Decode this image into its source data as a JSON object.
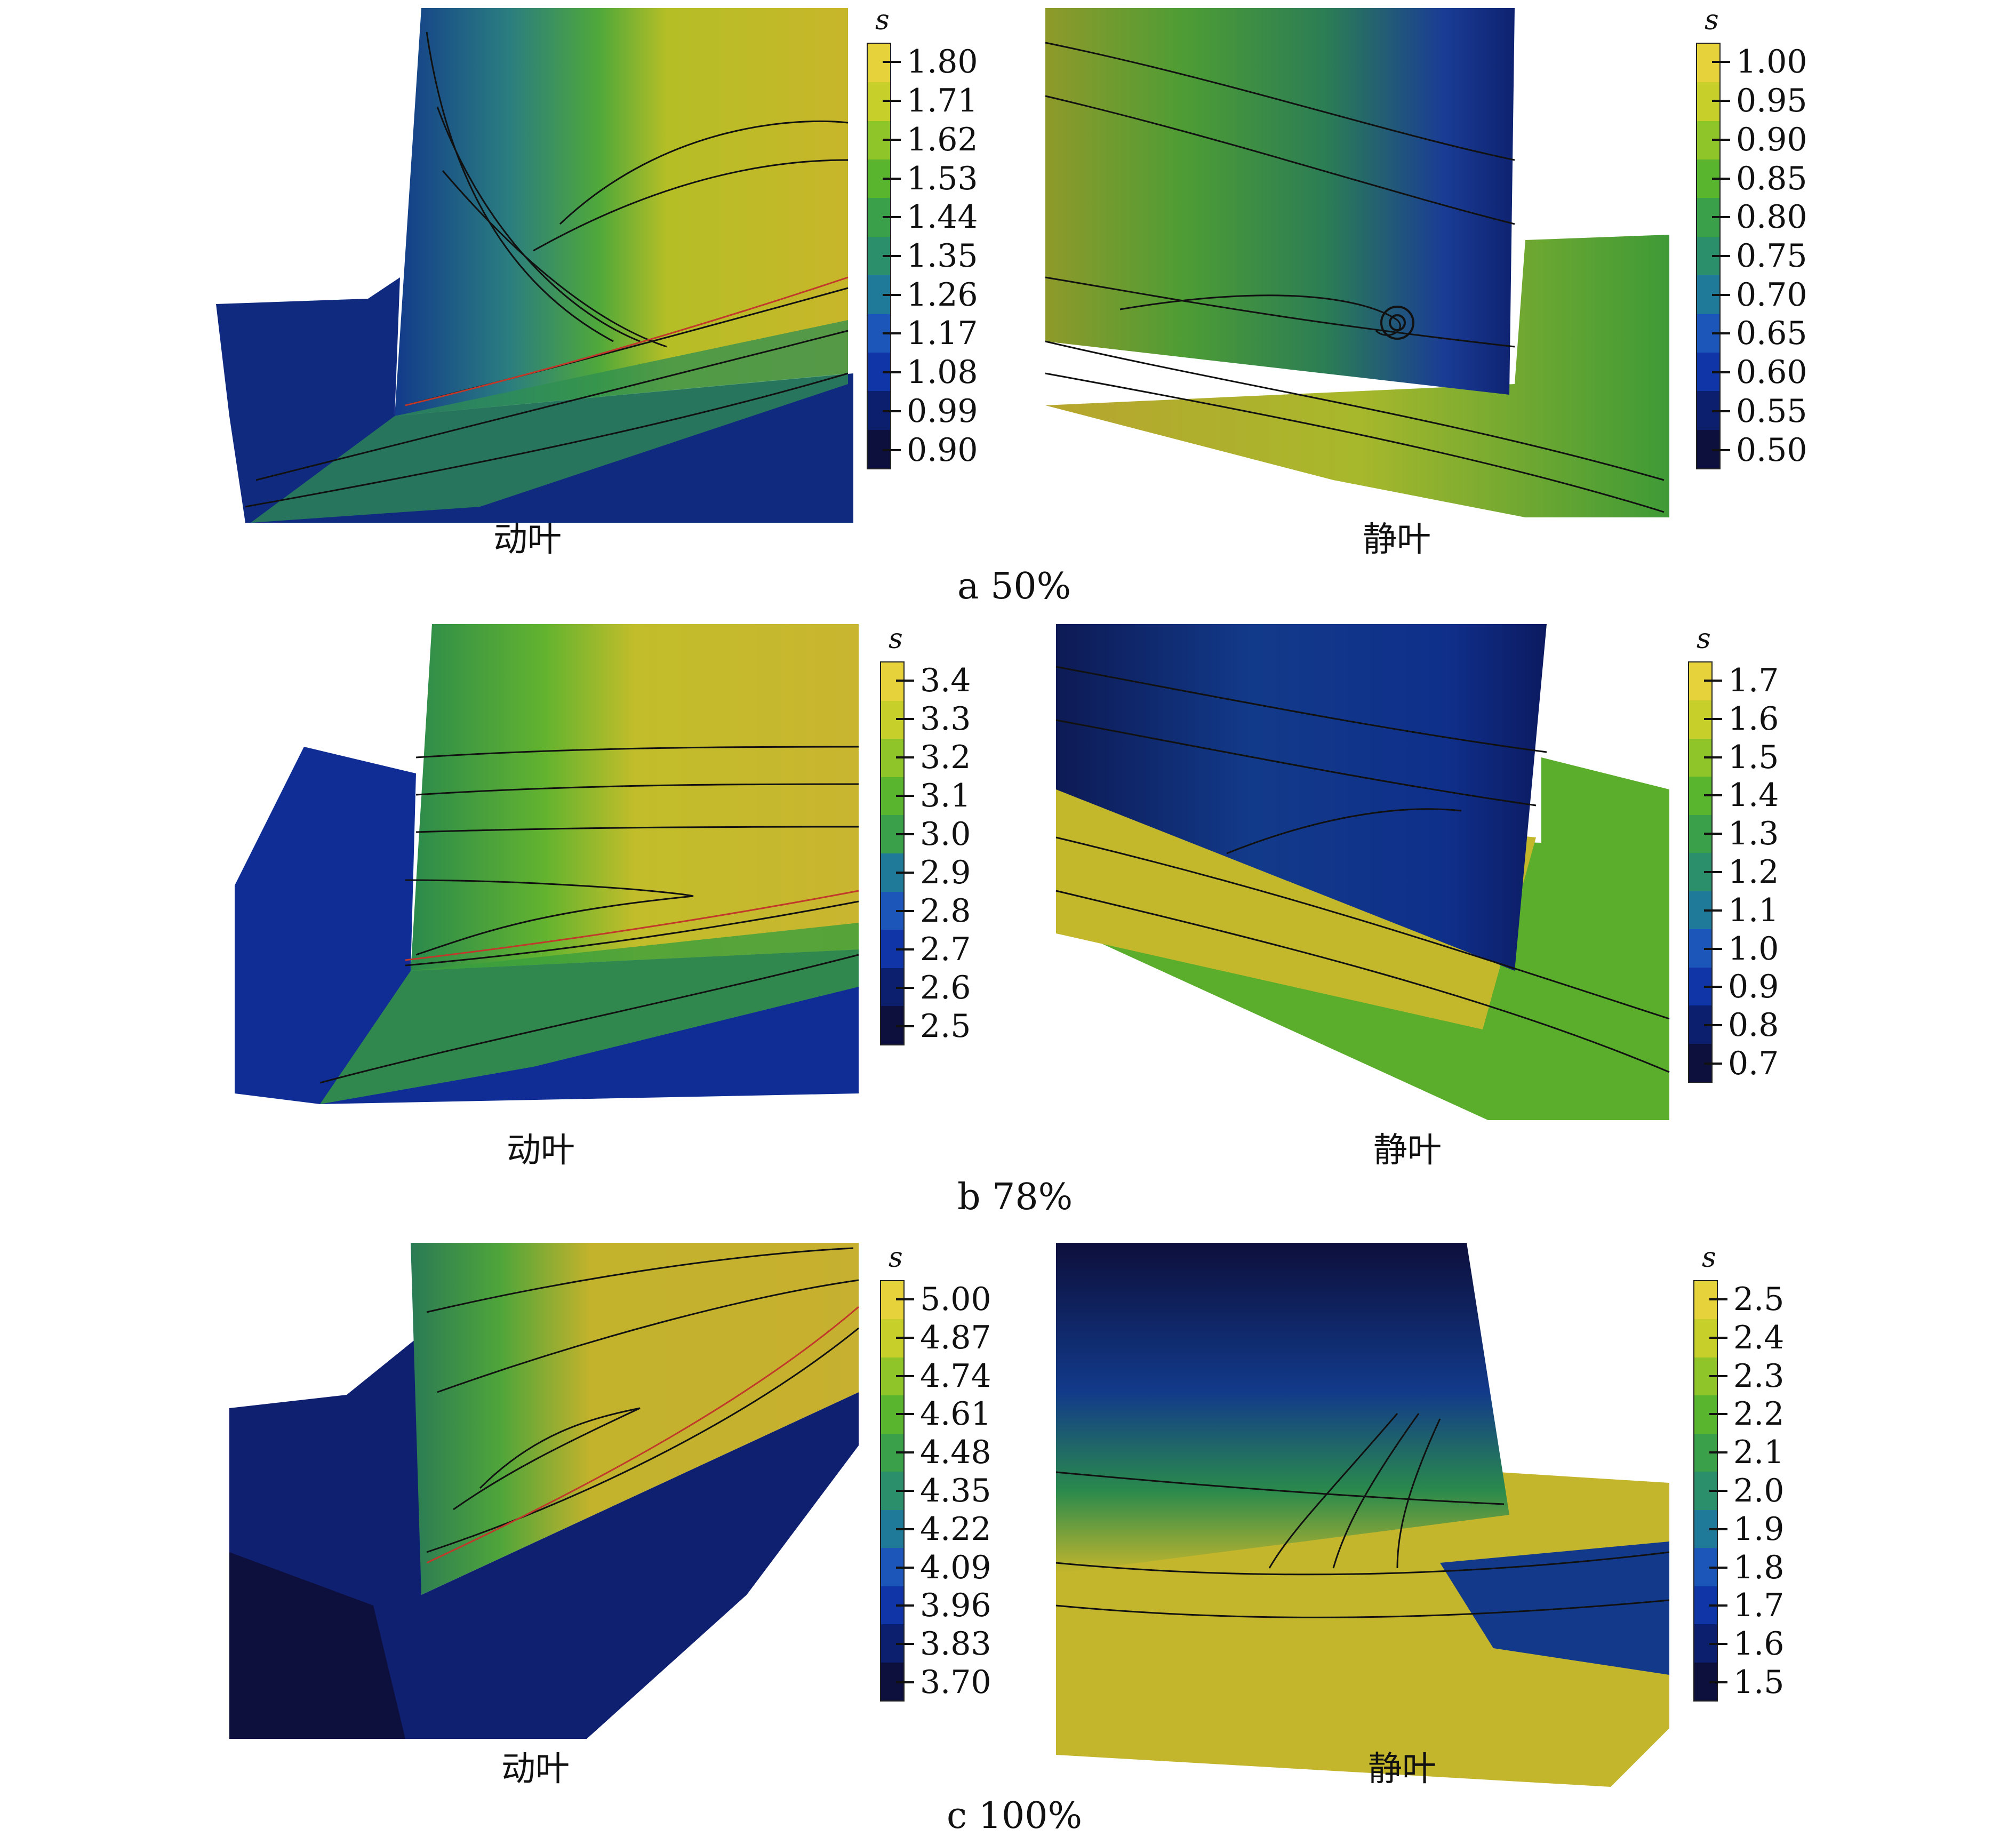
{
  "rows": [
    {
      "caption": "a  50%",
      "left": {
        "label": "动叶",
        "colorbar": {
          "title": "s",
          "ticks": [
            "1.80",
            "1.71",
            "1.62",
            "1.53",
            "1.44",
            "1.35",
            "1.26",
            "1.17",
            "1.08",
            "0.99",
            "0.90"
          ]
        }
      },
      "right": {
        "label": "静叶",
        "colorbar": {
          "title": "s",
          "ticks": [
            "1.00",
            "0.95",
            "0.90",
            "0.85",
            "0.80",
            "0.75",
            "0.70",
            "0.65",
            "0.60",
            "0.55",
            "0.50"
          ]
        }
      }
    },
    {
      "caption": "b  78%",
      "left": {
        "label": "动叶",
        "colorbar": {
          "title": "s",
          "ticks": [
            "3.4",
            "3.3",
            "3.2",
            "3.1",
            "3.0",
            "2.9",
            "2.8",
            "2.7",
            "2.6",
            "2.5"
          ]
        }
      },
      "right": {
        "label": "静叶",
        "colorbar": {
          "title": "s",
          "ticks": [
            "1.7",
            "1.6",
            "1.5",
            "1.4",
            "1.3",
            "1.2",
            "1.1",
            "1.0",
            "0.9",
            "0.8",
            "0.7"
          ]
        }
      }
    },
    {
      "caption": "c  100%",
      "left": {
        "label": "动叶",
        "colorbar": {
          "title": "s",
          "ticks": [
            "5.00",
            "4.87",
            "4.74",
            "4.61",
            "4.48",
            "4.35",
            "4.22",
            "4.09",
            "3.96",
            "3.83",
            "3.70"
          ]
        }
      },
      "right": {
        "label": "静叶",
        "colorbar": {
          "title": "s",
          "ticks": [
            "2.5",
            "2.4",
            "2.3",
            "2.2",
            "2.1",
            "2.0",
            "1.9",
            "1.8",
            "1.7",
            "1.6",
            "1.5"
          ]
        }
      }
    }
  ],
  "colormap": [
    "#0d0f3c",
    "#0b1f6e",
    "#0f35a6",
    "#1c56b8",
    "#1f7a9a",
    "#2a8f6a",
    "#3aa04a",
    "#5ab52e",
    "#90c52a",
    "#c7cf2a",
    "#e6d23a"
  ]
}
